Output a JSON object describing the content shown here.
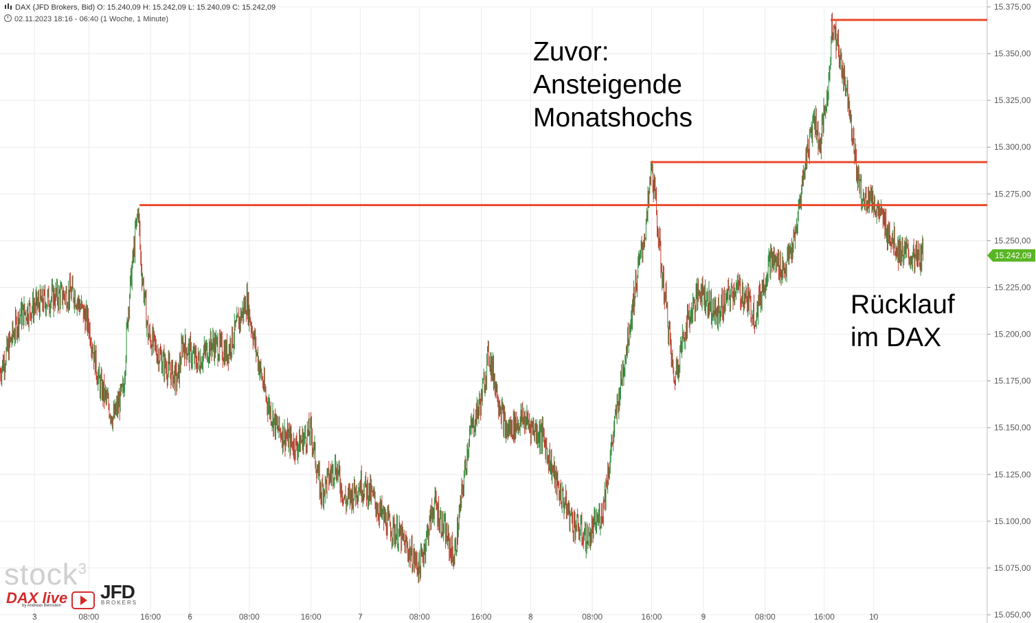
{
  "header": {
    "line1": "DAX (JFD Brokers, Bid)   O: 15.240,09   H: 15.242,09   L: 15.240,09   C: 15.242,09",
    "line2": "02.11.2023 18:16 - 06:40   (1 Woche, 1 Minute)"
  },
  "annotations": {
    "top": "Zuvor:\nAnsteigende\nMonatshochs",
    "right": "Rücklauf\nim DAX"
  },
  "watermark": {
    "stock": "stock",
    "stock_sup": "3",
    "dax_live": "DAX live",
    "by_line": "by Andreas Bernstein",
    "jfd": "JFD",
    "brokers": "BROKERS"
  },
  "colors": {
    "up": "#2e8b3a",
    "down": "#c0392b",
    "level_line": "#e8492a",
    "last_price_badge": "#5ab524",
    "grid": "#ececec"
  },
  "chart_data": {
    "type": "line",
    "title": "DAX (JFD Brokers, Bid)",
    "ylim": [
      15050,
      15375
    ],
    "y_ticks": [
      "15.050,00",
      "15.075,00",
      "15.100,00",
      "15.125,00",
      "15.150,00",
      "15.175,00",
      "15.200,00",
      "15.225,00",
      "15.250,00",
      "15.275,00",
      "15.300,00",
      "15.325,00",
      "15.350,00",
      "15.375,00"
    ],
    "y_tick_values": [
      15050,
      15075,
      15100,
      15125,
      15150,
      15175,
      15200,
      15225,
      15250,
      15275,
      15300,
      15325,
      15350,
      15375
    ],
    "x_tick_labels": [
      "3",
      "08:00",
      "16:00",
      "6",
      "08:00",
      "16:00",
      "7",
      "08:00",
      "16:00",
      "8",
      "08:00",
      "16:00",
      "9",
      "08:00",
      "16:00",
      "10"
    ],
    "x_tick_index": [
      14,
      36,
      61,
      77,
      101,
      126,
      146,
      170,
      195,
      215,
      240,
      264,
      285,
      310,
      334,
      354
    ],
    "x_count": 400,
    "last_price": 15242.09,
    "last_price_label": "15.242,09",
    "resistance_levels": [
      {
        "value": 15269,
        "from_index": 56,
        "to_index": 400
      },
      {
        "value": 15292,
        "from_index": 263,
        "to_index": 400
      },
      {
        "value": 15368,
        "from_index": 336,
        "to_index": 400
      }
    ],
    "series": [
      {
        "x_index": [
          0,
          8,
          14,
          22,
          30,
          36,
          40,
          46,
          50,
          52,
          55,
          56,
          57,
          60,
          66,
          72,
          74,
          80,
          86,
          92,
          100,
          104,
          108,
          112,
          120,
          126,
          130,
          136,
          140,
          146,
          150,
          156,
          162,
          170,
          176,
          184,
          190,
          195,
          198,
          205,
          212,
          220,
          226,
          232,
          238,
          244,
          250,
          254,
          258,
          262,
          264,
          266,
          268,
          270,
          273,
          278,
          284,
          290,
          298,
          302,
          306,
          312,
          318,
          322,
          326,
          330,
          332,
          336,
          337,
          340,
          344,
          346,
          348,
          350,
          352,
          356,
          360,
          364,
          368,
          372,
          374
        ],
        "close": [
          15180,
          15210,
          15215,
          15220,
          15222,
          15205,
          15175,
          15155,
          15170,
          15215,
          15255,
          15268,
          15240,
          15200,
          15185,
          15175,
          15195,
          15185,
          15195,
          15190,
          15218,
          15190,
          15165,
          15150,
          15140,
          15148,
          15115,
          15130,
          15110,
          15120,
          15115,
          15100,
          15092,
          15075,
          15110,
          15080,
          15145,
          15165,
          15190,
          15148,
          15155,
          15145,
          15118,
          15100,
          15090,
          15105,
          15160,
          15195,
          15230,
          15260,
          15290,
          15265,
          15235,
          15215,
          15175,
          15205,
          15225,
          15210,
          15225,
          15220,
          15210,
          15240,
          15235,
          15250,
          15290,
          15318,
          15300,
          15335,
          15368,
          15350,
          15325,
          15300,
          15280,
          15270,
          15275,
          15265,
          15255,
          15245,
          15242,
          15240,
          15242
        ]
      }
    ]
  }
}
